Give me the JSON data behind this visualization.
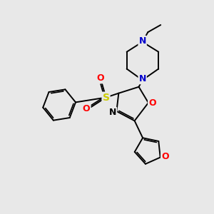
{
  "background_color": "#e8e8e8",
  "bond_color": "#000000",
  "nitrogen_color": "#0000cc",
  "oxygen_color": "#ff0000",
  "sulfur_color": "#cccc00",
  "figsize": [
    3.0,
    3.0
  ],
  "dpi": 100,
  "xlim": [
    0,
    10
  ],
  "ylim": [
    0,
    10
  ],
  "lw": 1.4
}
